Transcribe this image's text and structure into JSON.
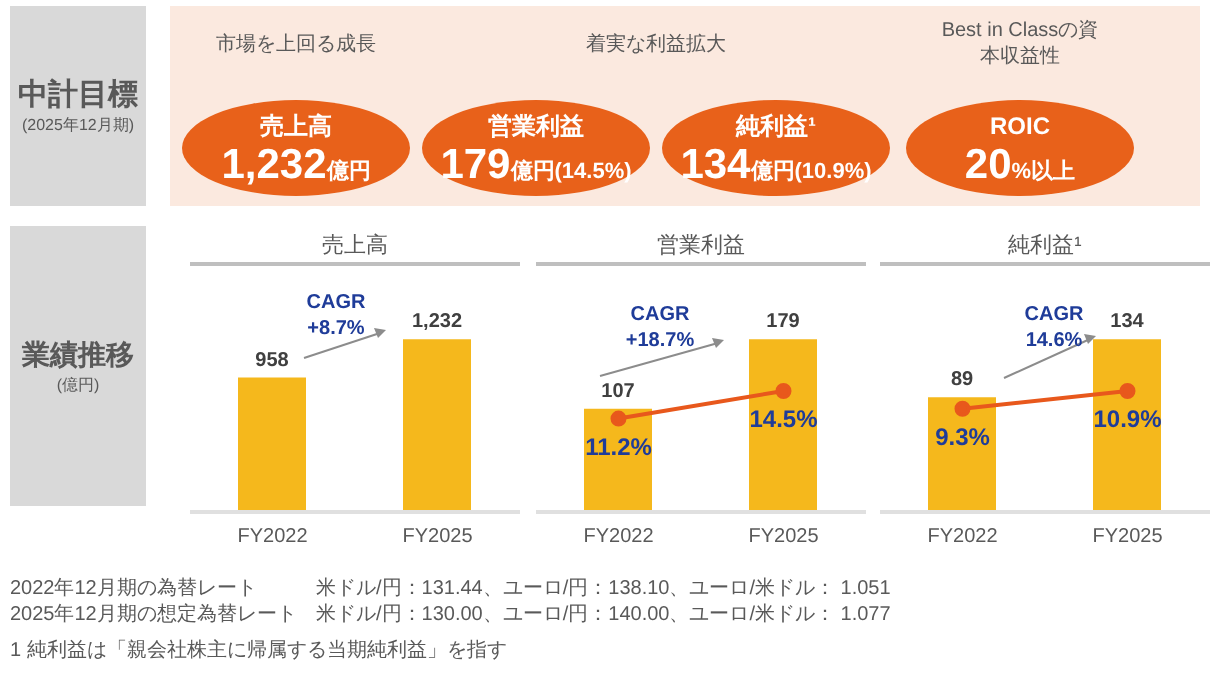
{
  "chart_data": [
    {
      "type": "other",
      "title": "中計目標",
      "subtitle": "(2025年12月期)",
      "annotations": [
        "市場を上回る成長",
        "着実な利益拡大",
        "Best in Classの資本収益性",
        "売上高",
        "1,232億円",
        "営業利益",
        "179億円(14.5%)",
        "純利益¹",
        "134億円(10.9%)",
        "ROIC",
        "20%以上",
        "業績推移",
        "(億円)",
        "2022年12月期の為替レート",
        "米ドル/円：131.44、ユーロ/円：138.10、ユーロ/米ドル： 1.051",
        "2025年12月期の想定為替レート",
        "米ドル/円：130.00、ユーロ/円：140.00、ユーロ/米ドル： 1.077",
        "1 純利益は「親会社株主に帰属する当期純利益」を指す"
      ]
    },
    {
      "type": "bar",
      "title": "売上高",
      "categories": [
        "FY2022",
        "FY2025"
      ],
      "tick_labels": "x",
      "annotations": [
        "CAGR\n+8.7%"
      ],
      "series": [
        {
          "type": "bar",
          "color": "#f5b81c",
          "values": [
            958,
            1232
          ],
          "value_labels": [
            "958",
            "1,232"
          ]
        }
      ]
    },
    {
      "type": "bar",
      "title": "営業利益",
      "categories": [
        "FY2022",
        "FY2025"
      ],
      "tick_labels": "x",
      "marker": "circle",
      "annotations": [
        "CAGR\n+18.7%"
      ],
      "series": [
        {
          "type": "bar",
          "color": "#f5b81c",
          "values": [
            107,
            179
          ],
          "value_labels": [
            "107",
            "179"
          ]
        },
        {
          "type": "line",
          "axis": "y2",
          "color": "#e8581c",
          "values": [
            11.2,
            14.5
          ],
          "value_labels": [
            "11.2%",
            "14.5%"
          ]
        }
      ]
    },
    {
      "type": "bar",
      "title": "純利益¹",
      "categories": [
        "FY2022",
        "FY2025"
      ],
      "tick_labels": "x",
      "marker": "circle",
      "annotations": [
        "CAGR\n14.6%"
      ],
      "series": [
        {
          "type": "bar",
          "color": "#f5b81c",
          "values": [
            89,
            134
          ],
          "value_labels": [
            "89",
            "134"
          ]
        },
        {
          "type": "line",
          "axis": "y2",
          "color": "#e8581c",
          "values": [
            9.3,
            10.9
          ],
          "value_labels": [
            "9.3%",
            "10.9%"
          ]
        }
      ]
    }
  ]
}
